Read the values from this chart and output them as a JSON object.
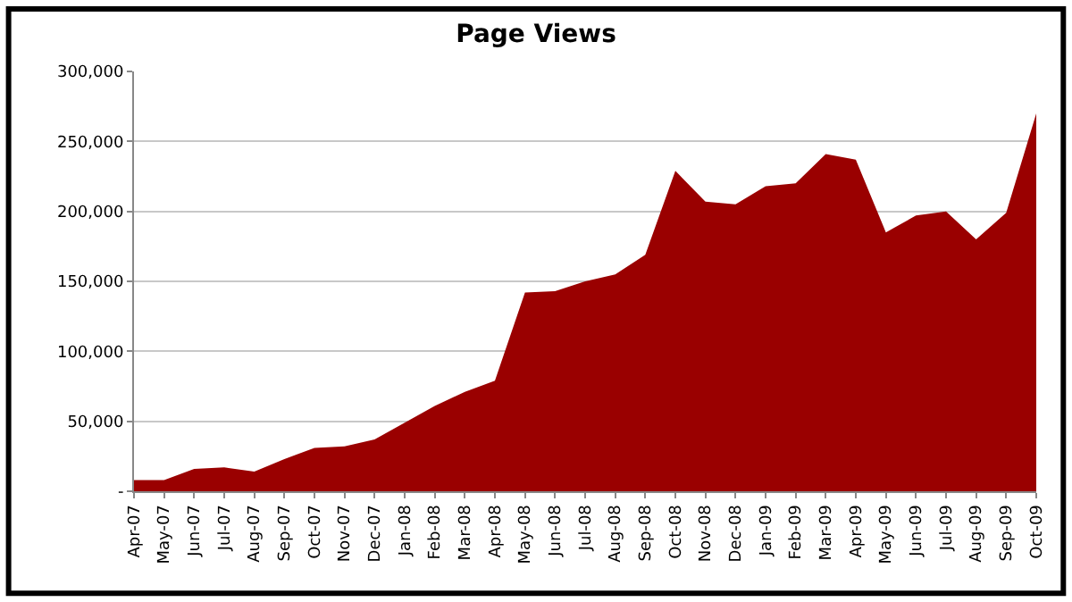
{
  "chart_data": {
    "type": "area",
    "title": "Page Views",
    "categories": [
      "Apr-07",
      "May-07",
      "Jun-07",
      "Jul-07",
      "Aug-07",
      "Sep-07",
      "Oct-07",
      "Nov-07",
      "Dec-07",
      "Jan-08",
      "Feb-08",
      "Mar-08",
      "Apr-08",
      "May-08",
      "Jun-08",
      "Jul-08",
      "Aug-08",
      "Sep-08",
      "Oct-08",
      "Nov-08",
      "Dec-08",
      "Jan-09",
      "Feb-09",
      "Mar-09",
      "Apr-09",
      "May-09",
      "Jun-09",
      "Jul-09",
      "Aug-09",
      "Sep-09",
      "Oct-09"
    ],
    "series": [
      {
        "color": "#9a0000",
        "values": [
          8000,
          8000,
          16000,
          17000,
          14000,
          23000,
          31000,
          32000,
          37000,
          49000,
          61000,
          71000,
          79000,
          142000,
          143000,
          150000,
          155000,
          169000,
          229000,
          207000,
          205000,
          218000,
          220000,
          241000,
          237000,
          185000,
          197000,
          200000,
          180000,
          199000,
          270000
        ]
      }
    ],
    "ylim": [
      0,
      300000
    ],
    "yticks": [
      {
        "value": 0,
        "label": "-"
      },
      {
        "value": 50000,
        "label": "50,000"
      },
      {
        "value": 100000,
        "label": "100,000"
      },
      {
        "value": 150000,
        "label": "150,000"
      },
      {
        "value": 200000,
        "label": "200,000"
      },
      {
        "value": 250000,
        "label": "250,000"
      },
      {
        "value": 300000,
        "label": "300,000"
      }
    ],
    "grid": "y"
  }
}
